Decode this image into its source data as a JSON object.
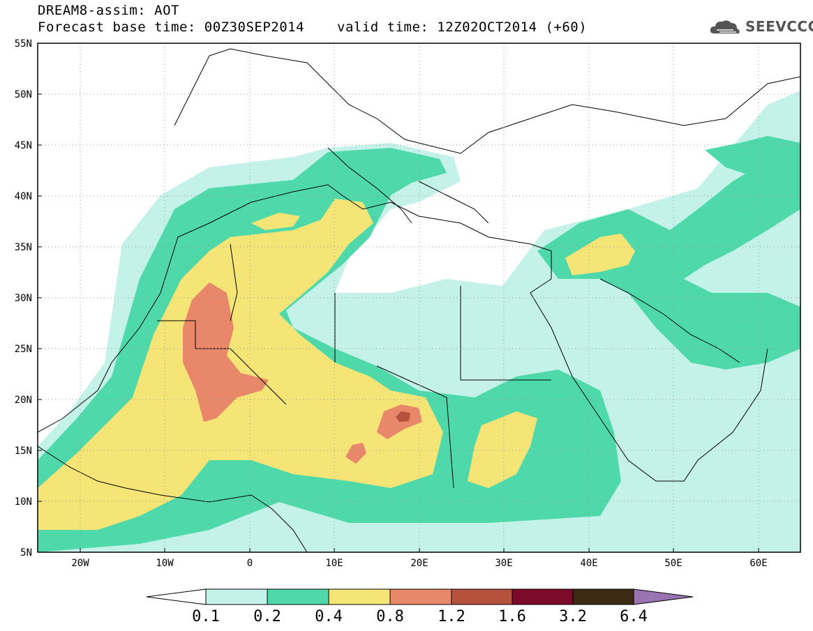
{
  "title": {
    "line1": "DREAM8-assim: AOT",
    "line2": "Forecast base time: 00Z30SEP2014",
    "valid": "valid time: 12Z02OCT2014 (+60)"
  },
  "logo": {
    "text": "SEEVCCC",
    "icon": "cloud-icon",
    "color": "#555555"
  },
  "map_data": {
    "type": "filled-contour-map",
    "variable": "AOT",
    "lon_range": [
      -25,
      65
    ],
    "lat_range": [
      5,
      55
    ],
    "lat_ticks": [
      "55N",
      "50N",
      "45N",
      "40N",
      "35N",
      "30N",
      "25N",
      "20N",
      "15N",
      "10N",
      "5N"
    ],
    "lon_ticks": [
      "20W",
      "10W",
      "0",
      "10E",
      "20E",
      "30E",
      "40E",
      "50E",
      "60E"
    ],
    "grid": "dotted"
  },
  "colorbar": {
    "labels": [
      "0.1",
      "0.2",
      "0.4",
      "0.8",
      "1.2",
      "1.6",
      "3.2",
      "6.4"
    ],
    "colors": [
      "#ffffff",
      "#c4f2e8",
      "#4fd9aa",
      "#f5e577",
      "#e8876a",
      "#b5513c",
      "#7c0a2a",
      "#3d2a12",
      "#9a74b2"
    ]
  }
}
